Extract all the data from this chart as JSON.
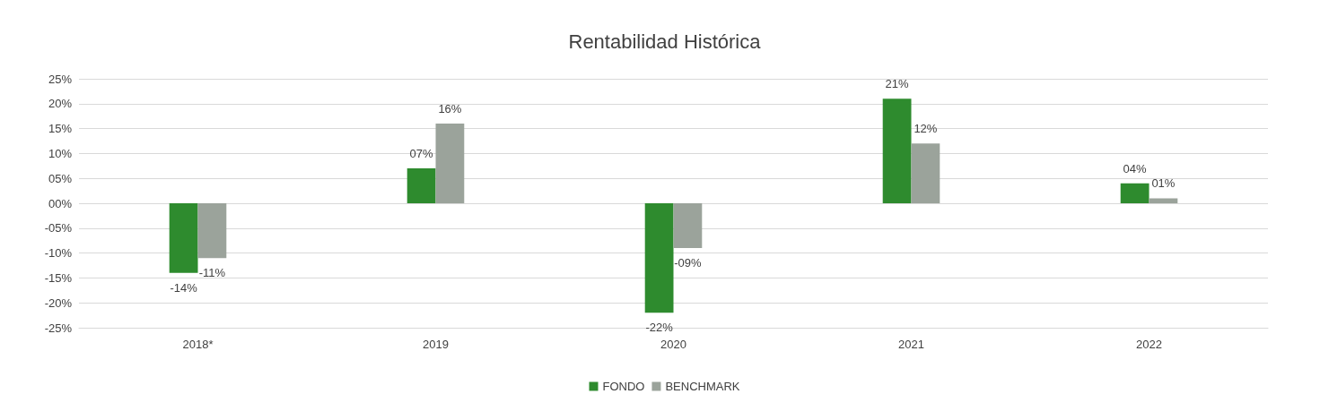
{
  "chart_data": {
    "type": "bar",
    "title": "Rentabilidad Histórica",
    "categories": [
      "2018*",
      "2019",
      "2020",
      "2021",
      "2022"
    ],
    "series": [
      {
        "name": "FONDO",
        "color": "#2e8b2e",
        "values": [
          -14,
          7,
          -22,
          21,
          4
        ],
        "value_labels": [
          "-14%",
          "07%",
          "-22%",
          "21%",
          "04%"
        ]
      },
      {
        "name": "BENCHMARK",
        "color": "#9ba39b",
        "values": [
          -11,
          16,
          -9,
          12,
          1
        ],
        "value_labels": [
          "-11%",
          "16%",
          "-09%",
          "12%",
          "01%"
        ]
      }
    ],
    "ylim": [
      -25,
      25
    ],
    "yticks": [
      {
        "value": -25,
        "label": "-25%"
      },
      {
        "value": -20,
        "label": "-20%"
      },
      {
        "value": -15,
        "label": "-15%"
      },
      {
        "value": -10,
        "label": "-10%"
      },
      {
        "value": -5,
        "label": "-05%"
      },
      {
        "value": 0,
        "label": "00%"
      },
      {
        "value": 5,
        "label": "05%"
      },
      {
        "value": 10,
        "label": "10%"
      },
      {
        "value": 15,
        "label": "15%"
      },
      {
        "value": 20,
        "label": "20%"
      },
      {
        "value": 25,
        "label": "25%"
      }
    ],
    "grid": "y",
    "legend": "bottom"
  }
}
